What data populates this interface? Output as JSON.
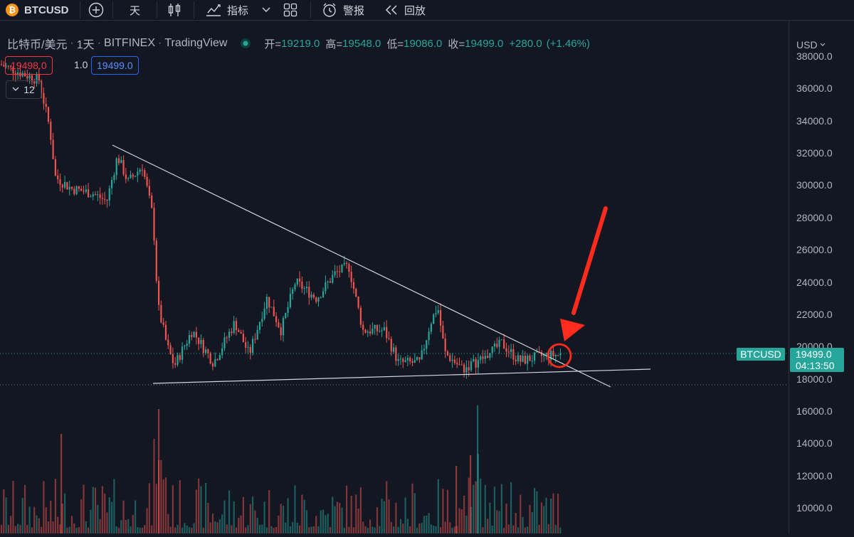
{
  "toolbar": {
    "logo_glyph": "₿",
    "symbol": "BTCUSD",
    "interval": "天",
    "indicators": "指标",
    "alert": "警报",
    "replay": "回放"
  },
  "legend": {
    "title": "比特币/美元",
    "interval": "1天",
    "exchange": "BITFINEX",
    "source": "TradingView",
    "open_label": "开=",
    "open": "19219.0",
    "high_label": "高=",
    "high": "19548.0",
    "low_label": "低=",
    "low": "19086.0",
    "close_label": "收=",
    "close": "19499.0",
    "change": "+280.0",
    "change_pct": "(+1.46%)"
  },
  "order": {
    "bid": "19498.0",
    "spread": "1.0",
    "ask": "19499.0"
  },
  "period_control": {
    "value": "12"
  },
  "price_axis": {
    "currency": "USD",
    "labels": [
      "38000.0",
      "36000.0",
      "34000.0",
      "32000.0",
      "30000.0",
      "28000.0",
      "26000.0",
      "24000.0",
      "22000.0",
      "20000.0",
      "18000.0",
      "16000.0",
      "14000.0",
      "12000.0",
      "10000.0"
    ],
    "last_price": "19499.0",
    "countdown": "04:13:50",
    "symbol_tag": "BTCUSD"
  },
  "colors": {
    "up": "#26a69a",
    "down": "#ef5350",
    "background": "#131722",
    "annotation": "#ff2b1c",
    "trendline": "#d1d4dc"
  },
  "icons": [
    "bitcoin-logo-icon",
    "add-compare-icon",
    "candles-icon",
    "indicators-icon",
    "chevron-down-icon",
    "layout-grid-icon",
    "alert-clock-icon",
    "replay-rewind-icon"
  ]
}
